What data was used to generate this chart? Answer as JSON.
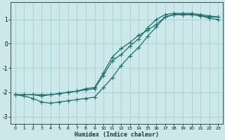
{
  "xlabel": "Humidex (Indice chaleur)",
  "ylabel": "",
  "bg_color": "#cce8e8",
  "grid_color": "#aacfcf",
  "line_color": "#1a6e6e",
  "xlim": [
    -0.5,
    23.5
  ],
  "ylim": [
    -3.3,
    1.7
  ],
  "yticks": [
    1,
    0,
    -1,
    -2,
    -3
  ],
  "xticks": [
    0,
    1,
    2,
    3,
    4,
    5,
    6,
    7,
    8,
    9,
    10,
    11,
    12,
    13,
    14,
    15,
    16,
    17,
    18,
    19,
    20,
    21,
    22,
    23
  ],
  "line1_x": [
    0,
    1,
    2,
    3,
    4,
    5,
    6,
    7,
    8,
    9,
    10,
    11,
    12,
    13,
    14,
    15,
    16,
    17,
    18,
    19,
    20,
    21,
    22,
    23
  ],
  "line1_y": [
    -2.1,
    -2.15,
    -2.25,
    -2.4,
    -2.45,
    -2.4,
    -2.35,
    -2.3,
    -2.25,
    -2.2,
    -1.8,
    -1.4,
    -0.9,
    -0.5,
    -0.15,
    0.3,
    0.7,
    1.1,
    1.2,
    1.2,
    1.2,
    1.15,
    1.1,
    1.1
  ],
  "line2_x": [
    0,
    1,
    2,
    3,
    4,
    5,
    6,
    7,
    8,
    9,
    10,
    11,
    12,
    13,
    14,
    15,
    16,
    17,
    18,
    19,
    20,
    21,
    22,
    23
  ],
  "line2_y": [
    -2.1,
    -2.1,
    -2.1,
    -2.15,
    -2.1,
    -2.05,
    -2.0,
    -1.95,
    -1.9,
    -1.85,
    -1.3,
    -0.7,
    -0.45,
    -0.1,
    0.2,
    0.65,
    1.0,
    1.2,
    1.25,
    1.25,
    1.25,
    1.2,
    1.15,
    1.1
  ],
  "line3_x": [
    0,
    1,
    2,
    3,
    4,
    5,
    6,
    7,
    8,
    9,
    10,
    11,
    12,
    13,
    14,
    15,
    16,
    17,
    18,
    19,
    20,
    21,
    22,
    23
  ],
  "line3_y": [
    -2.1,
    -2.1,
    -2.1,
    -2.1,
    -2.1,
    -2.05,
    -2.0,
    -1.95,
    -1.85,
    -1.8,
    -1.2,
    -0.55,
    -0.2,
    0.05,
    0.35,
    0.55,
    0.8,
    1.1,
    1.2,
    1.2,
    1.2,
    1.15,
    1.05,
    1.0
  ]
}
